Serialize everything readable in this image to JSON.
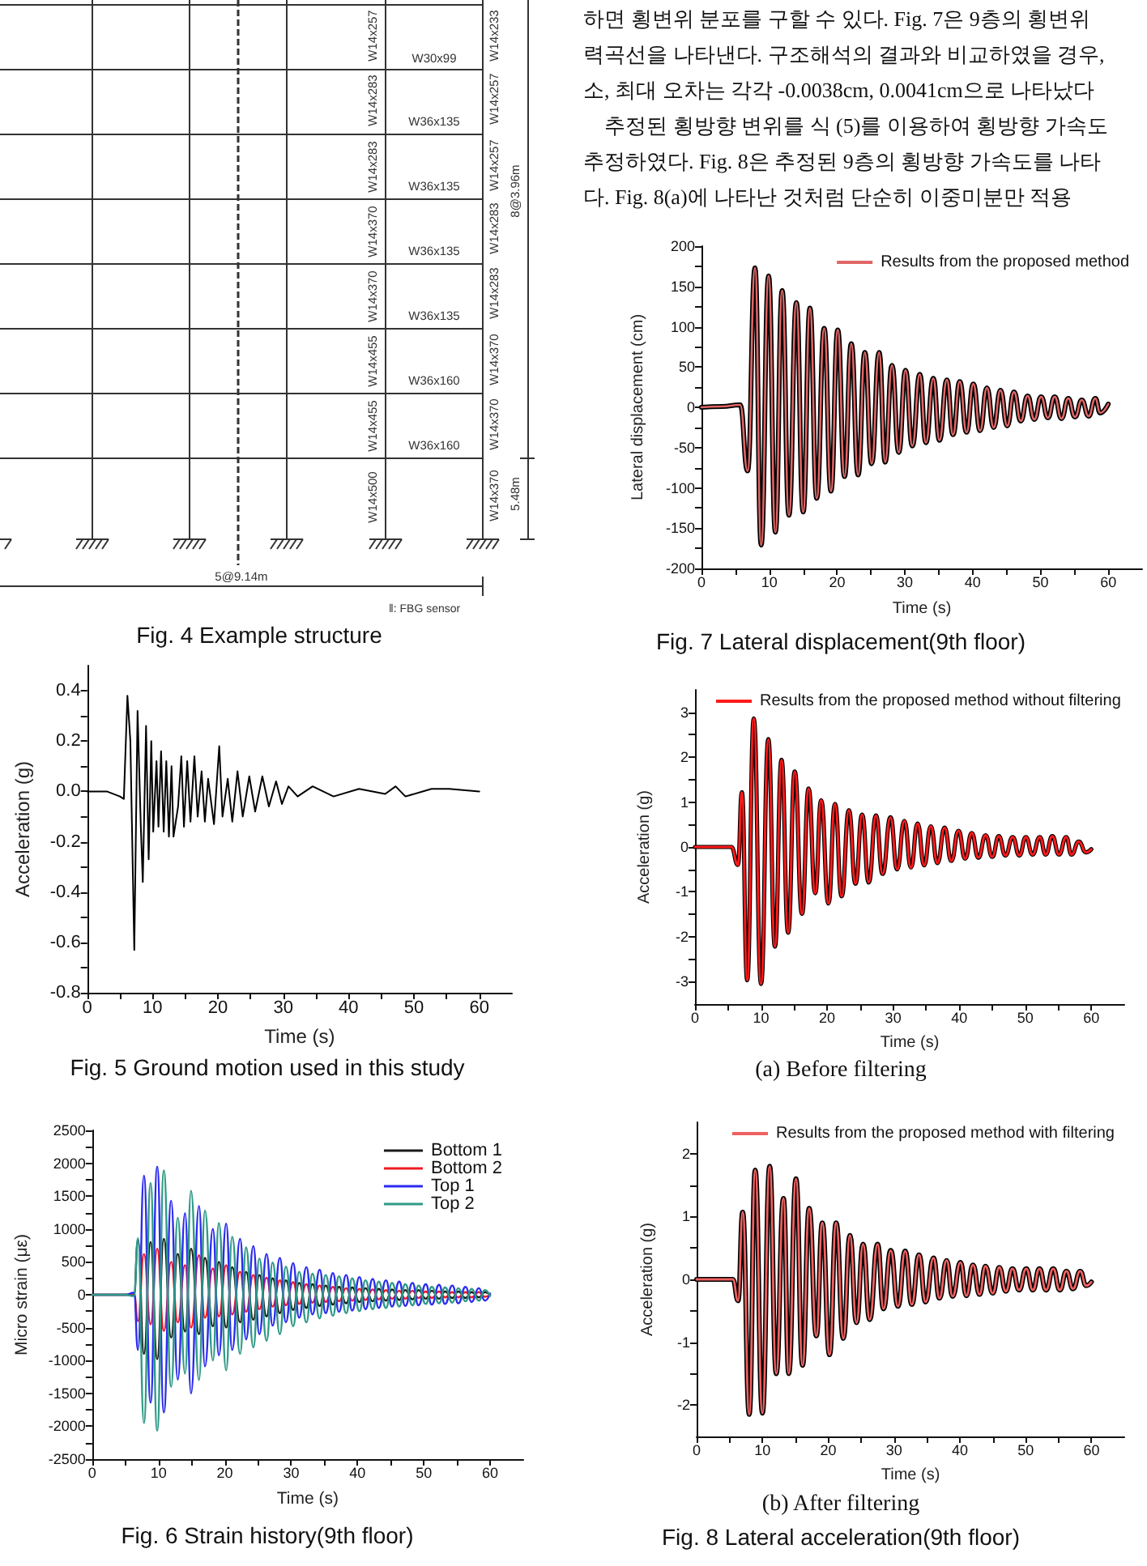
{
  "chart_data": [
    {
      "type": "other",
      "title": "Fig. 4 Example structure",
      "annotations": [
        "W14x257",
        "W14x283",
        "W14x283",
        "W14x370",
        "W14x370",
        "W14x455",
        "W14x455",
        "W14x500",
        "W30x99",
        "W36x135",
        "W36x135",
        "W36x135",
        "W36x135",
        "W36x160",
        "W36x160",
        "W14x233",
        "W14x257",
        "W14x257",
        "W14x283",
        "W14x283",
        "W14x370",
        "W14x370",
        "W14x370",
        "8@3.96m",
        "5.48m",
        "5@9.14m",
        "‖: FBG sensor"
      ]
    },
    {
      "type": "line",
      "title": "Fig. 5 Ground motion used in this study",
      "xlabel": "Time (s)",
      "ylabel": "Acceleration (g)",
      "x": [
        0,
        3,
        5,
        5.6,
        6.15,
        6.6,
        7.2,
        7.7,
        8.2,
        8.5,
        9.0,
        9.4,
        9.8,
        10.1,
        10.6,
        10.9,
        11.3,
        11.7,
        12.1,
        12.5,
        12.9,
        13.2,
        13.9,
        14.4,
        14.8,
        15.3,
        15.8,
        16.4,
        16.9,
        17.5,
        18.0,
        18.5,
        19.4,
        20.2,
        20.7,
        21.5,
        22.2,
        23.0,
        23.8,
        24.8,
        25.7,
        26.8,
        27.8,
        28.9,
        29.8,
        30.8,
        32.2,
        34.5,
        37.7,
        41.6,
        45.6,
        47.2,
        48.7,
        52.7,
        55.4,
        60
      ],
      "series": [
        {
          "color": "#000000",
          "values": [
            0,
            0,
            -0.02,
            -0.03,
            0.38,
            0.2,
            -0.63,
            0.32,
            -0.14,
            -0.36,
            0.26,
            -0.27,
            0.2,
            -0.16,
            0.12,
            -0.14,
            0.16,
            -0.16,
            0.12,
            -0.18,
            0.1,
            -0.18,
            -0.06,
            0.14,
            -0.14,
            0.12,
            -0.12,
            0.14,
            -0.1,
            0.08,
            -0.12,
            0.05,
            -0.13,
            0.18,
            -0.1,
            0.05,
            -0.12,
            0.08,
            -0.1,
            0.06,
            -0.08,
            0.06,
            -0.06,
            0.04,
            -0.05,
            0.02,
            -0.02,
            0.02,
            -0.02,
            0.01,
            -0.01,
            0.02,
            -0.02,
            0.01,
            0.01,
            0
          ]
        }
      ],
      "xlim": [
        0,
        65
      ],
      "xticks": [
        0,
        {
          "value": 5,
          "label": null
        },
        10,
        {
          "value": 15,
          "label": null
        },
        20,
        {
          "value": 25,
          "label": null
        },
        30,
        {
          "value": 35,
          "label": null
        },
        40,
        {
          "value": 45,
          "label": null
        },
        50,
        {
          "value": 55,
          "label": null
        },
        60
      ],
      "ylim": [
        -0.8,
        0.5
      ],
      "yticks": [
        -0.8,
        {
          "value": -0.7,
          "label": null
        },
        -0.6,
        {
          "value": -0.5,
          "label": null
        },
        -0.4,
        {
          "value": -0.3,
          "label": null
        },
        -0.2,
        {
          "value": -0.1,
          "label": null
        },
        {
          "value": 0,
          "label": "0.0"
        },
        {
          "value": 0.1,
          "label": null
        },
        0.2,
        {
          "value": 0.3,
          "label": null
        },
        0.4
      ]
    },
    {
      "type": "line",
      "title": "Fig. 6 Strain history(9th floor)",
      "xlabel": "Time (s)",
      "ylabel": "Micro strain (με)",
      "legend": "top right",
      "x": [
        0,
        5,
        6.3,
        6.9,
        7.8,
        8.8,
        9.8,
        10.8,
        11.9,
        12.9,
        14.0,
        14.9,
        16.1,
        17.0,
        18.2,
        19.1,
        20.2,
        21.1,
        22.3,
        23.2,
        24.3,
        25.2,
        26.3,
        27.2,
        28.3,
        29.2,
        30.3,
        31.2,
        32.3,
        33.2,
        34.3,
        35.2,
        36.3,
        37.2,
        38.3,
        39.2,
        40.3,
        41.2,
        42.3,
        43.2,
        44.3,
        45.2,
        46.3,
        47.2,
        48.3,
        49.2,
        50.3,
        51.2,
        52.3,
        53.2,
        54.3,
        55.2,
        56.3,
        57.2,
        58.3,
        59.2,
        60
      ],
      "series": [
        {
          "name": "Bottom 1",
          "color": "#1a1a1a",
          "values": [
            0,
            0,
            -10,
            830,
            -900,
            800,
            -980,
            850,
            -650,
            620,
            -560,
            700,
            -600,
            560,
            -480,
            500,
            -500,
            420,
            -420,
            350,
            -380,
            300,
            -330,
            250,
            -280,
            220,
            -230,
            180,
            -200,
            160,
            -170,
            140,
            -150,
            120,
            -130,
            110,
            -110,
            100,
            -100,
            90,
            -90,
            80,
            -80,
            70,
            -70,
            70,
            -60,
            60,
            -60,
            50,
            -50,
            50,
            -50,
            40,
            -40,
            40,
            0
          ]
        },
        {
          "name": "Bottom 2",
          "color": "#ee1c24",
          "values": [
            0,
            0,
            20,
            -400,
            620,
            -450,
            700,
            -550,
            500,
            -420,
            450,
            -500,
            600,
            -350,
            400,
            -330,
            450,
            -300,
            350,
            -260,
            300,
            -220,
            260,
            -180,
            220,
            -160,
            190,
            -140,
            160,
            -120,
            140,
            -110,
            120,
            -100,
            100,
            -90,
            90,
            -80,
            80,
            -70,
            70,
            -60,
            60,
            -60,
            60,
            -50,
            50,
            -50,
            50,
            -40,
            40,
            -40,
            40,
            -40,
            40,
            -30,
            0
          ]
        },
        {
          "name": "Top 1",
          "color": "#2b2bef",
          "values": [
            0,
            0,
            30,
            -840,
            1810,
            -1640,
            1950,
            -1790,
            1430,
            -1290,
            1240,
            -1500,
            1350,
            -1090,
            1000,
            -920,
            1080,
            -840,
            850,
            -680,
            740,
            -600,
            620,
            -470,
            560,
            -420,
            480,
            -350,
            420,
            -300,
            380,
            -280,
            330,
            -260,
            300,
            -240,
            270,
            -220,
            240,
            -200,
            220,
            -180,
            200,
            -170,
            180,
            -160,
            160,
            -150,
            150,
            -140,
            140,
            -130,
            120,
            -110,
            100,
            -90,
            20
          ]
        },
        {
          "name": "Top 2",
          "color": "#2f9a86",
          "values": [
            0,
            0,
            -20,
            860,
            -1950,
            1700,
            -2070,
            1890,
            -1400,
            1170,
            -1200,
            1580,
            -1300,
            1280,
            -1000,
            1090,
            -1150,
            880,
            -900,
            720,
            -800,
            550,
            -700,
            490,
            -600,
            430,
            -480,
            350,
            -420,
            320,
            -360,
            300,
            -320,
            280,
            -280,
            250,
            -250,
            220,
            -220,
            200,
            -200,
            180,
            -180,
            160,
            -160,
            140,
            -140,
            120,
            -130,
            110,
            -120,
            100,
            -100,
            90,
            -90,
            70,
            -20
          ]
        }
      ],
      "xlim": [
        0,
        65
      ],
      "xticks": [
        0,
        {
          "value": 5,
          "label": null
        },
        10,
        {
          "value": 15,
          "label": null
        },
        20,
        {
          "value": 25,
          "label": null
        },
        30,
        {
          "value": 35,
          "label": null
        },
        40,
        {
          "value": 45,
          "label": null
        },
        50,
        {
          "value": 55,
          "label": null
        },
        60
      ],
      "ylim": [
        -2500,
        2500
      ],
      "yticks": [
        -2500,
        {
          "value": -2250,
          "label": null
        },
        -2000,
        {
          "value": -1750,
          "label": null
        },
        -1500,
        {
          "value": -1250,
          "label": null
        },
        -1000,
        {
          "value": -750,
          "label": null
        },
        -500,
        {
          "value": -250,
          "label": null
        },
        0,
        {
          "value": 250,
          "label": null
        },
        500,
        {
          "value": 750,
          "label": null
        },
        1000,
        {
          "value": 1250,
          "label": null
        },
        1500,
        {
          "value": 1750,
          "label": null
        },
        2000,
        {
          "value": 2250,
          "label": null
        },
        2500
      ]
    },
    {
      "type": "other",
      "annotations": [
        "하면 횡변위 분포를 구할 수 있다. Fig. 7은 9층의 횡변위",
        "력곡선을 나타낸다. 구조해석의 결과와 비교하였을 경우,",
        "소, 최대 오차는 각각 -0.0038cm, 0.0041cm으로 나타났다",
        "추정된 횡방향 변위를 식 (5)를 이용하여 횡방향 가속도",
        "추정하였다. Fig. 8은 추정된 9층의 횡방향 가속도를 나타",
        "다. Fig. 8(a)에 나타난 것처럼 단순히 이중미분만 적용"
      ]
    },
    {
      "type": "line",
      "title": "Fig. 7 Lateral displacement(9th floor)",
      "xlabel": "Time (s)",
      "ylabel": "Lateral displacement (cm)",
      "legend": "top right",
      "x": [
        0,
        3,
        5.7,
        6.8,
        7.9,
        8.8,
        9.9,
        10.9,
        11.9,
        12.9,
        14.0,
        15.0,
        16.0,
        17.0,
        18.1,
        19.1,
        20.1,
        21.1,
        22.1,
        23.1,
        24.1,
        25.1,
        26.2,
        27.1,
        28.1,
        29.1,
        30.1,
        31.1,
        32.2,
        33.1,
        34.2,
        35.1,
        36.2,
        37.1,
        38.1,
        39.1,
        40.1,
        41.1,
        42.1,
        43.1,
        44.1,
        45.1,
        46.1,
        47.1,
        48.1,
        49.1,
        50.1,
        51.1,
        52.1,
        53.1,
        54.1,
        55.1,
        56.1,
        57.1,
        58.1,
        58.8,
        60
      ],
      "series": [
        {
          "color": "#000000",
          "values": [
            0,
            1,
            3,
            -79,
            173,
            -171,
            163,
            -155,
            145,
            -134,
            130,
            -130,
            123,
            -113,
            98,
            -104,
            96,
            -86,
            79,
            -84,
            68,
            -70,
            68,
            -68,
            52,
            -56,
            46,
            -48,
            41,
            -44,
            36,
            -41,
            34,
            -34,
            32,
            -31,
            29,
            -29,
            24,
            -25,
            21,
            -23,
            19,
            -17,
            14,
            -15,
            13,
            -13,
            13,
            -14,
            11,
            -12,
            9,
            -11,
            11,
            -7,
            4
          ]
        },
        {
          "name": "Results from the proposed method",
          "color": "#e06666",
          "values": [
            0,
            1,
            3,
            -79,
            173,
            -171,
            163,
            -155,
            145,
            -134,
            130,
            -130,
            123,
            -113,
            98,
            -104,
            96,
            -86,
            79,
            -84,
            68,
            -70,
            68,
            -68,
            52,
            -56,
            46,
            -48,
            41,
            -44,
            36,
            -41,
            34,
            -34,
            32,
            -31,
            29,
            -29,
            24,
            -25,
            21,
            -23,
            19,
            -17,
            14,
            -15,
            13,
            -13,
            13,
            -14,
            11,
            -12,
            9,
            -11,
            11,
            -7,
            4
          ]
        }
      ],
      "xlim": [
        0,
        65
      ],
      "xticks": [
        0,
        {
          "value": 5,
          "label": null
        },
        10,
        {
          "value": 15,
          "label": null
        },
        20,
        {
          "value": 25,
          "label": null
        },
        30,
        {
          "value": 35,
          "label": null
        },
        40,
        {
          "value": 45,
          "label": null
        },
        50,
        {
          "value": 55,
          "label": null
        },
        60
      ],
      "ylim": [
        -200,
        200
      ],
      "yticks": [
        -200,
        {
          "value": -175,
          "label": null
        },
        -150,
        {
          "value": -125,
          "label": null
        },
        -100,
        {
          "value": -75,
          "label": null
        },
        -50,
        {
          "value": -25,
          "label": null
        },
        0,
        {
          "value": 25,
          "label": null
        },
        50,
        {
          "value": 75,
          "label": null
        },
        100,
        {
          "value": 125,
          "label": null
        },
        150,
        {
          "value": 175,
          "label": null
        },
        200
      ]
    },
    {
      "type": "line",
      "title": "(a) Before filtering",
      "xlabel": "Time (s)",
      "ylabel": "Acceleration (g)",
      "legend": "top left",
      "x": [
        0,
        3,
        5.5,
        6.5,
        7.1,
        7.9,
        8.9,
        10.0,
        11.1,
        12.1,
        13.1,
        14.1,
        15.1,
        16.2,
        17.2,
        18.2,
        19.1,
        20.2,
        21.2,
        22.2,
        23.3,
        24.3,
        25.3,
        26.3,
        27.4,
        28.4,
        29.6,
        30.6,
        31.7,
        32.7,
        33.7,
        34.7,
        35.7,
        36.7,
        37.8,
        38.8,
        39.9,
        40.9,
        41.9,
        42.9,
        44.0,
        45.0,
        46.0,
        47.0,
        48.1,
        49.1,
        50.1,
        51.1,
        52.2,
        53.1,
        54.1,
        55.1,
        56.2,
        57.0,
        58.1,
        59.2,
        60
      ],
      "series": [
        {
          "color": "#000000",
          "values": [
            0,
            0,
            0,
            -0.4,
            1.22,
            -2.97,
            2.86,
            -3.05,
            2.4,
            -2.22,
            1.94,
            -1.91,
            1.68,
            -1.49,
            1.3,
            -1.03,
            1.04,
            -1.26,
            0.96,
            -1.1,
            0.82,
            -0.82,
            0.72,
            -0.79,
            0.7,
            -0.6,
            0.66,
            -0.5,
            0.58,
            -0.46,
            0.52,
            -0.41,
            0.46,
            -0.36,
            0.43,
            -0.31,
            0.36,
            -0.26,
            0.31,
            -0.24,
            0.26,
            -0.22,
            0.24,
            -0.19,
            0.22,
            -0.19,
            0.22,
            -0.17,
            0.22,
            -0.17,
            0.24,
            -0.17,
            0.22,
            -0.17,
            0.12,
            -0.12,
            -0.05
          ]
        },
        {
          "name": "Results from the proposed method without filtering",
          "color": "#ff1a1a",
          "values": [
            0,
            0,
            0,
            -0.4,
            1.22,
            -2.97,
            2.86,
            -3.05,
            2.4,
            -2.22,
            1.94,
            -1.91,
            1.68,
            -1.49,
            1.3,
            -1.03,
            1.04,
            -1.26,
            0.96,
            -1.1,
            0.82,
            -0.82,
            0.72,
            -0.79,
            0.7,
            -0.6,
            0.66,
            -0.5,
            0.58,
            -0.46,
            0.52,
            -0.41,
            0.46,
            -0.36,
            0.43,
            -0.31,
            0.36,
            -0.26,
            0.31,
            -0.24,
            0.26,
            -0.22,
            0.24,
            -0.19,
            0.22,
            -0.19,
            0.22,
            -0.17,
            0.22,
            -0.17,
            0.24,
            -0.17,
            0.22,
            -0.17,
            0.12,
            -0.12,
            -0.05
          ]
        }
      ],
      "xlim": [
        0,
        65
      ],
      "xticks": [
        0,
        {
          "value": 5,
          "label": null
        },
        10,
        {
          "value": 15,
          "label": null
        },
        20,
        {
          "value": 25,
          "label": null
        },
        30,
        {
          "value": 35,
          "label": null
        },
        40,
        {
          "value": 45,
          "label": null
        },
        50,
        {
          "value": 55,
          "label": null
        },
        60
      ],
      "ylim": [
        -3.5,
        3.5
      ],
      "yticks": [
        -3,
        {
          "value": -2.5,
          "label": null
        },
        -2,
        {
          "value": -1.5,
          "label": null
        },
        -1,
        {
          "value": -0.5,
          "label": null
        },
        0,
        {
          "value": 0.5,
          "label": null
        },
        1,
        {
          "value": 1.5,
          "label": null
        },
        2,
        {
          "value": 2.5,
          "label": null
        },
        3
      ]
    },
    {
      "type": "line",
      "title": "(b) After filtering",
      "annotations": [
        "Fig. 8 Lateral acceleration(9th floor)"
      ],
      "xlabel": "Time (s)",
      "ylabel": "Acceleration (g)",
      "legend": "top left",
      "x": [
        0,
        3,
        5.5,
        6.3,
        7.0,
        8.0,
        8.9,
        10.0,
        11.1,
        12.1,
        13.2,
        14.0,
        15.1,
        16.1,
        17.1,
        18.2,
        19.1,
        20.2,
        21.2,
        22.3,
        23.3,
        24.3,
        25.3,
        26.3,
        27.5,
        28.4,
        29.5,
        30.6,
        31.7,
        32.7,
        33.8,
        34.8,
        36.0,
        36.9,
        38.0,
        38.9,
        40.1,
        41.0,
        42.0,
        43.0,
        43.9,
        45.0,
        46.0,
        47.0,
        48.0,
        49.0,
        50.1,
        51.1,
        52.1,
        53.1,
        54.2,
        55.2,
        56.2,
        57.2,
        58.3,
        59.2,
        60
      ],
      "series": [
        {
          "color": "#000000",
          "values": [
            0,
            0,
            0,
            -0.34,
            1.07,
            -2.15,
            1.74,
            -2.13,
            1.8,
            -1.5,
            1.29,
            -1.5,
            1.6,
            -1.37,
            1.13,
            -0.9,
            0.9,
            -1.2,
            0.9,
            -0.94,
            0.7,
            -0.69,
            0.56,
            -0.64,
            0.56,
            -0.47,
            0.46,
            -0.43,
            0.45,
            -0.4,
            0.39,
            -0.36,
            0.34,
            -0.3,
            0.3,
            -0.27,
            0.27,
            -0.26,
            0.23,
            -0.24,
            0.21,
            -0.22,
            0.19,
            -0.19,
            0.17,
            -0.17,
            0.17,
            -0.17,
            0.17,
            -0.17,
            0.17,
            -0.17,
            0.13,
            -0.15,
            0.13,
            -0.1,
            -0.04
          ]
        },
        {
          "name": "Results from the proposed method with filtering",
          "color": "#f06060",
          "values": [
            0,
            0,
            0,
            -0.34,
            1.07,
            -2.15,
            1.74,
            -2.13,
            1.8,
            -1.5,
            1.29,
            -1.5,
            1.6,
            -1.37,
            1.13,
            -0.9,
            0.9,
            -1.2,
            0.9,
            -0.94,
            0.7,
            -0.69,
            0.56,
            -0.64,
            0.56,
            -0.47,
            0.46,
            -0.43,
            0.45,
            -0.4,
            0.39,
            -0.36,
            0.34,
            -0.3,
            0.3,
            -0.27,
            0.27,
            -0.26,
            0.23,
            -0.24,
            0.21,
            -0.22,
            0.19,
            -0.19,
            0.17,
            -0.17,
            0.17,
            -0.17,
            0.17,
            -0.17,
            0.17,
            -0.17,
            0.13,
            -0.15,
            0.13,
            -0.1,
            -0.04
          ]
        }
      ],
      "xlim": [
        0,
        65
      ],
      "xticks": [
        0,
        {
          "value": 5,
          "label": null
        },
        10,
        {
          "value": 15,
          "label": null
        },
        20,
        {
          "value": 25,
          "label": null
        },
        30,
        {
          "value": 35,
          "label": null
        },
        40,
        {
          "value": 45,
          "label": null
        },
        50,
        {
          "value": 55,
          "label": null
        },
        60
      ],
      "ylim": [
        -2.5,
        2.5
      ],
      "yticks": [
        -2,
        {
          "value": -1.5,
          "label": null
        },
        -1,
        {
          "value": -0.5,
          "label": null
        },
        0,
        {
          "value": 0.5,
          "label": null
        },
        1,
        {
          "value": 1.5,
          "label": null
        },
        2
      ]
    }
  ]
}
